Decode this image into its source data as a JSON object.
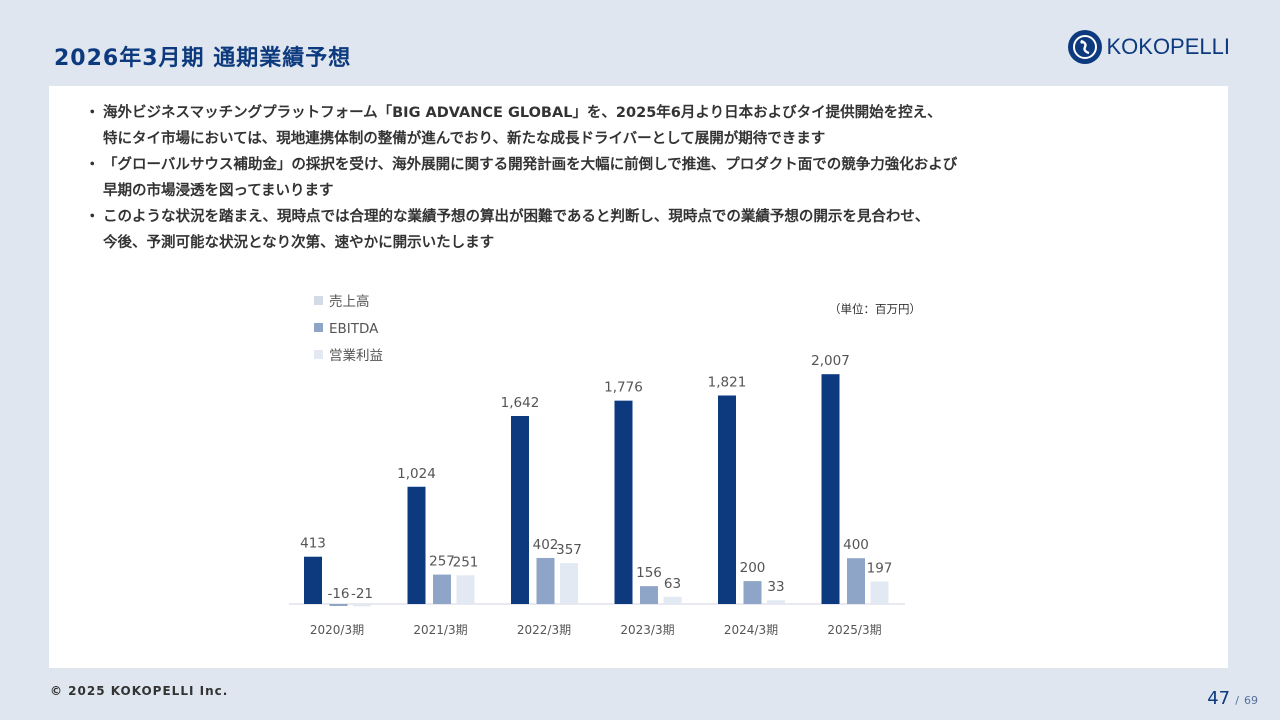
{
  "header": {
    "title": "2026年3月期 通期業績予想",
    "logo_text": "KOKOPELLI"
  },
  "bullets": [
    "海外ビジネスマッチングプラットフォーム「BIG ADVANCE GLOBAL」を、2025年6月より日本およびタイ提供開始を控え、\n特にタイ市場においては、現地連携体制の整備が進んでおり、新たな成長ドライバーとして展開が期待できます",
    "「グローバルサウス補助金」の採択を受け、海外展開に関する開発計画を大幅に前倒しで推進、プロダクト面での競争力強化および\n早期の市場浸透を図ってまいります",
    "このような状況を踏まえ、現時点では合理的な業績予想の算出が困難であると判断し、現時点での業績予想の開示を見合わせ、\n今後、予測可能な状況となり次第、速やかに開示いたします"
  ],
  "bullet_marker": "・",
  "chart_data": {
    "type": "bar",
    "unit_note": "（単位：百万円）",
    "categories": [
      "2020/3期",
      "2021/3期",
      "2022/3期",
      "2023/3期",
      "2024/3期",
      "2025/3期"
    ],
    "series": [
      {
        "name": "売上高",
        "values": [
          413,
          1024,
          1642,
          1776,
          1821,
          2007
        ],
        "labels": [
          "413",
          "1,024",
          "1,642",
          "1,776",
          "1,821",
          "2,007"
        ],
        "color": "#0d3a7e"
      },
      {
        "name": "EBITDA",
        "values": [
          -16,
          257,
          402,
          156,
          200,
          400
        ],
        "labels": [
          "-16",
          "257",
          "402",
          "156",
          "200",
          "400"
        ],
        "color": "#8ea5c8"
      },
      {
        "name": "営業利益",
        "values": [
          -21,
          251,
          357,
          63,
          33,
          197
        ],
        "labels": [
          "-21",
          "251",
          "357",
          "63",
          "33",
          "197"
        ],
        "color": "#e3e9f3"
      }
    ],
    "legend_position": "top-left",
    "legend_colors": [
      "#d3dbe8",
      "#8ea5c8",
      "#e3e9f3"
    ],
    "grid": false
  },
  "footer": {
    "copyright": "© 2025 KOKOPELLI Inc.",
    "page_current": "47",
    "page_separator": "/",
    "page_total": "69"
  }
}
